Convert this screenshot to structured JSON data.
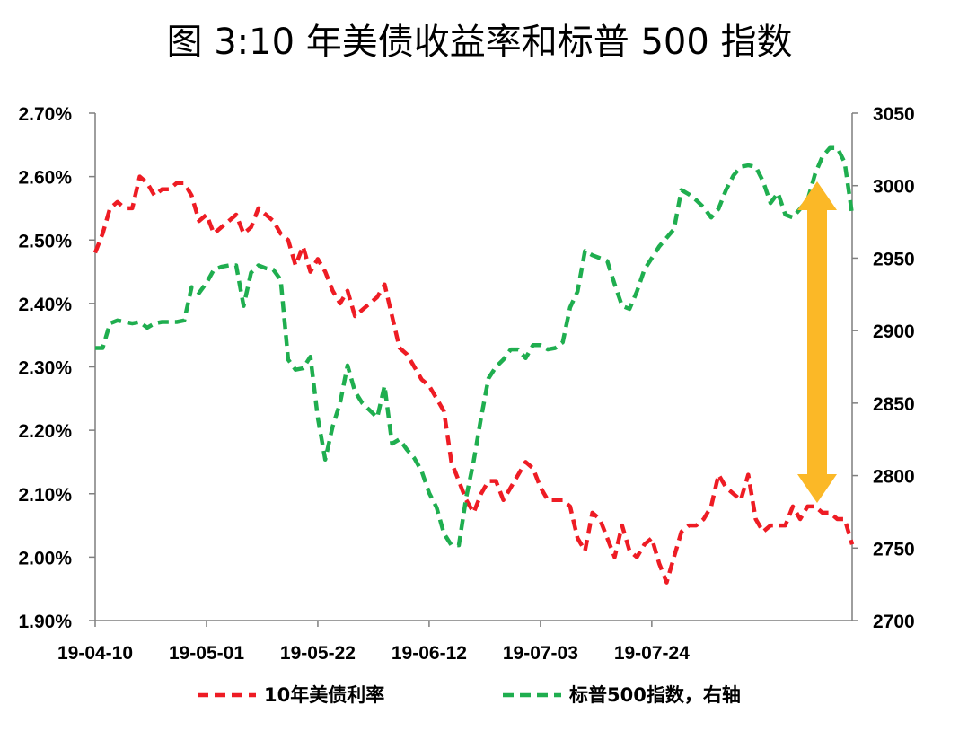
{
  "title": "图 3:10 年美债收益率和标普 500 指数",
  "colors": {
    "yield": "#ee1c24",
    "spx": "#1fae4f",
    "arrow": "#fbb827",
    "axis": "#7f7f7f"
  },
  "chart_data": {
    "type": "line",
    "x_tick_labels": [
      "19-04-10",
      "19-05-01",
      "19-05-22",
      "19-06-12",
      "19-07-03",
      "19-07-24"
    ],
    "y_left": {
      "ticks": [
        "1.90%",
        "2.00%",
        "2.10%",
        "2.20%",
        "2.30%",
        "2.40%",
        "2.50%",
        "2.60%",
        "2.70%"
      ],
      "min": 1.9,
      "max": 2.7,
      "unit": "%"
    },
    "y_right": {
      "ticks": [
        "2700",
        "2750",
        "2800",
        "2850",
        "2900",
        "2950",
        "3000",
        "3050"
      ],
      "min": 2700,
      "max": 3050
    },
    "grid": false,
    "legend_position": "bottom",
    "annotation": "double-headed arrow between series",
    "series": [
      {
        "name": "10年美债利率",
        "axis": "left",
        "style": "dashed",
        "values": [
          2.48,
          2.51,
          2.55,
          2.56,
          2.55,
          2.55,
          2.6,
          2.59,
          2.57,
          2.58,
          2.58,
          2.59,
          2.59,
          2.57,
          2.53,
          2.54,
          2.51,
          2.52,
          2.53,
          2.54,
          2.51,
          2.52,
          2.55,
          2.54,
          2.53,
          2.51,
          2.5,
          2.46,
          2.49,
          2.45,
          2.47,
          2.45,
          2.42,
          2.4,
          2.42,
          2.38,
          2.39,
          2.4,
          2.41,
          2.43,
          2.38,
          2.33,
          2.32,
          2.3,
          2.28,
          2.27,
          2.25,
          2.23,
          2.15,
          2.12,
          2.09,
          2.07,
          2.1,
          2.12,
          2.12,
          2.09,
          2.11,
          2.13,
          2.15,
          2.14,
          2.11,
          2.09,
          2.09,
          2.09,
          2.08,
          2.03,
          2.01,
          2.07,
          2.06,
          2.03,
          2.0,
          2.05,
          2.01,
          2.0,
          2.02,
          2.03,
          1.99,
          1.96,
          2.0,
          2.04,
          2.05,
          2.05,
          2.06,
          2.08,
          2.13,
          2.11,
          2.1,
          2.09,
          2.13,
          2.06,
          2.04,
          2.05,
          2.05,
          2.05,
          2.08,
          2.06,
          2.08,
          2.08,
          2.07,
          2.07,
          2.06,
          2.06,
          2.02
        ]
      },
      {
        "name": "标普500指数，右轴",
        "axis": "right",
        "style": "dashed",
        "values": [
          2888,
          2888,
          2905,
          2907,
          2906,
          2905,
          2906,
          2902,
          2905,
          2906,
          2906,
          2906,
          2907,
          2930,
          2926,
          2933,
          2942,
          2944,
          2945,
          2945,
          2917,
          2940,
          2945,
          2943,
          2942,
          2935,
          2880,
          2873,
          2874,
          2882,
          2840,
          2811,
          2834,
          2850,
          2876,
          2858,
          2850,
          2845,
          2840,
          2862,
          2822,
          2825,
          2818,
          2812,
          2803,
          2788,
          2778,
          2760,
          2752,
          2752,
          2785,
          2810,
          2840,
          2867,
          2875,
          2880,
          2887,
          2887,
          2881,
          2890,
          2890,
          2887,
          2888,
          2892,
          2916,
          2927,
          2955,
          2952,
          2950,
          2948,
          2932,
          2917,
          2915,
          2927,
          2942,
          2950,
          2958,
          2964,
          2970,
          2997,
          2994,
          2990,
          2985,
          2978,
          2984,
          2997,
          3007,
          3013,
          3014,
          3013,
          3003,
          2988,
          2995,
          2980,
          2978,
          2984,
          2990,
          3008,
          3020,
          3026,
          3026,
          3016,
          2980
        ]
      }
    ]
  }
}
